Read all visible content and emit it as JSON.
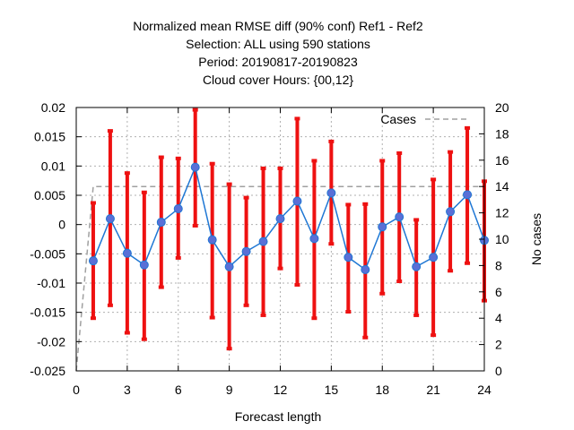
{
  "chart_data": {
    "type": "line",
    "title_lines": [
      "Normalized mean RMSE diff (90% conf) Ref1 - Ref2",
      "Selection: ALL using   590 stations",
      "Period: 20190817-20190823",
      "Cloud cover   Hours: {00,12}"
    ],
    "xlabel": "Forecast length",
    "ylabel_right": "No cases",
    "xlim": [
      0,
      24
    ],
    "ylim": [
      -0.025,
      0.02
    ],
    "y2lim": [
      0,
      20
    ],
    "x_ticks": [
      0,
      3,
      6,
      9,
      12,
      15,
      18,
      21,
      24
    ],
    "y_ticks": [
      -0.025,
      -0.02,
      -0.015,
      -0.01,
      -0.005,
      0,
      0.005,
      0.01,
      0.015,
      0.02
    ],
    "y_tick_labels": [
      "-0.025",
      "-0.02",
      "-0.015",
      "-0.01",
      "-0.005",
      "0",
      "0.005",
      "0.01",
      "0.015",
      "0.02"
    ],
    "y2_ticks": [
      0,
      2,
      4,
      6,
      8,
      10,
      12,
      14,
      16,
      18,
      20
    ],
    "grid": true,
    "legend": {
      "position": "top-right",
      "entries": [
        "Cases"
      ]
    },
    "series": [
      {
        "kind": "mean_diff",
        "color": "#1f77d4",
        "marker_color": "#5a6fd6",
        "x": [
          1,
          2,
          3,
          4,
          5,
          6,
          7,
          8,
          9,
          10,
          11,
          12,
          13,
          14,
          15,
          16,
          17,
          18,
          19,
          20,
          21,
          22,
          23,
          24
        ],
        "values": [
          -0.0062,
          0.001,
          -0.0049,
          -0.0069,
          0.0004,
          0.0027,
          0.0098,
          -0.0026,
          -0.0072,
          -0.0046,
          -0.0029,
          0.001,
          0.004,
          -0.0024,
          0.0054,
          -0.0056,
          -0.0077,
          -0.0004,
          0.0013,
          -0.0072,
          -0.0056,
          0.0022,
          0.0051,
          -0.0027
        ],
        "err_low": [
          -0.016,
          -0.0138,
          -0.0185,
          -0.0196,
          -0.0107,
          -0.0057,
          -0.0002,
          -0.0159,
          -0.0212,
          -0.0138,
          -0.0155,
          -0.0075,
          -0.0103,
          -0.016,
          -0.0033,
          -0.0149,
          -0.0193,
          -0.0118,
          -0.0097,
          -0.0155,
          -0.0189,
          -0.0079,
          -0.0066,
          -0.013
        ],
        "err_high": [
          0.0037,
          0.016,
          0.0088,
          0.0055,
          0.0115,
          0.0113,
          0.0196,
          0.0104,
          0.0069,
          0.0046,
          0.0096,
          0.0096,
          0.0181,
          0.0109,
          0.0142,
          0.0034,
          0.0035,
          0.0109,
          0.0122,
          0.0008,
          0.0077,
          0.0124,
          0.0165,
          0.0074
        ],
        "error_bar_color": "#ee1111"
      },
      {
        "kind": "cases",
        "name": "Cases",
        "axis": "y2",
        "color": "#a0a0a0",
        "dashed": true,
        "x": [
          0,
          0.5,
          1,
          24
        ],
        "values": [
          0,
          7,
          14,
          14
        ]
      }
    ]
  }
}
